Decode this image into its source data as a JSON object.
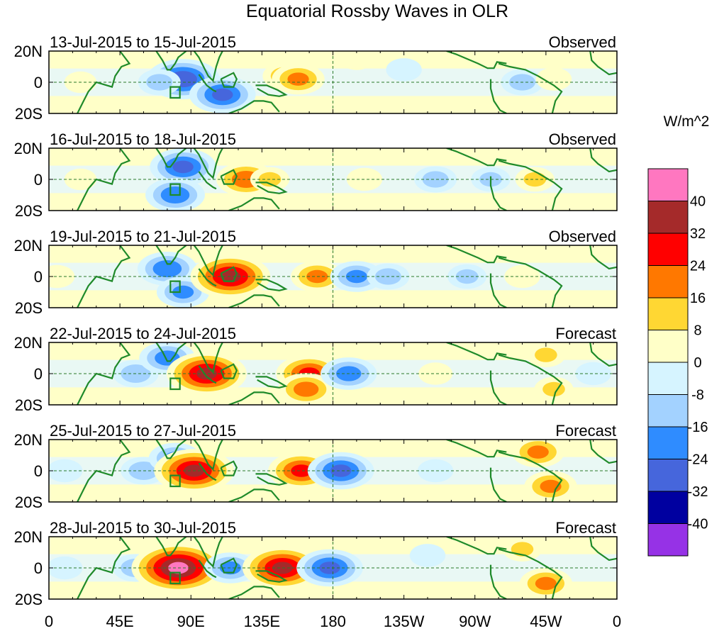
{
  "chart_data": {
    "type": "heatmap",
    "title": "Equatorial Rossby Waves in OLR",
    "units_label": "W/m^2",
    "x_ticks": [
      "0",
      "45E",
      "90E",
      "135E",
      "180",
      "135W",
      "90W",
      "45W",
      "0"
    ],
    "x_tick_lon": [
      0,
      45,
      90,
      135,
      180,
      225,
      270,
      315,
      360
    ],
    "y_ticks": [
      "20N",
      "0",
      "20S"
    ],
    "y_tick_lat": [
      20,
      0,
      -20
    ],
    "xlim": [
      0,
      360
    ],
    "ylim": [
      -20,
      20
    ],
    "reference_lines": {
      "equator_lat": 0,
      "dateline_lon": 180
    },
    "colorbar": {
      "levels": [
        "40",
        "32",
        "24",
        "16",
        "8",
        "0",
        "-8",
        "-16",
        "-24",
        "-32",
        "-40"
      ],
      "colors": [
        "#ff77c0",
        "#a52a2a",
        "#ff0000",
        "#ff7800",
        "#ffd733",
        "#ffffc8",
        "#d6f4ff",
        "#a3d2ff",
        "#2f8cff",
        "#4666dc",
        "#0000a0",
        "#9632e6"
      ]
    },
    "panels": [
      {
        "date_range": "13-Jul-2015 to 15-Jul-2015",
        "status": "Observed",
        "anomalies": [
          {
            "lon": 85,
            "lat": 2,
            "value": -28
          },
          {
            "lon": 110,
            "lat": -8,
            "value": -24
          },
          {
            "lon": 150,
            "lat": 4,
            "value": 12
          },
          {
            "lon": 158,
            "lat": 2,
            "value": 16
          },
          {
            "lon": 70,
            "lat": 0,
            "value": -10
          },
          {
            "lon": 225,
            "lat": 8,
            "value": -6
          },
          {
            "lon": 300,
            "lat": 0,
            "value": -10
          },
          {
            "lon": 320,
            "lat": 2,
            "value": 6
          },
          {
            "lon": 20,
            "lat": 0,
            "value": 4
          },
          {
            "lon": 195,
            "lat": 15,
            "value": 5
          }
        ]
      },
      {
        "date_range": "16-Jul-2015 to 18-Jul-2015",
        "status": "Observed",
        "anomalies": [
          {
            "lon": 85,
            "lat": 8,
            "value": -24
          },
          {
            "lon": 80,
            "lat": -10,
            "value": -20
          },
          {
            "lon": 125,
            "lat": 0,
            "value": 20
          },
          {
            "lon": 140,
            "lat": 0,
            "value": 8
          },
          {
            "lon": 200,
            "lat": 0,
            "value": 6
          },
          {
            "lon": 245,
            "lat": 0,
            "value": -10
          },
          {
            "lon": 280,
            "lat": 0,
            "value": -8
          },
          {
            "lon": 308,
            "lat": 0,
            "value": 8
          },
          {
            "lon": 20,
            "lat": 0,
            "value": 4
          }
        ]
      },
      {
        "date_range": "19-Jul-2015 to 21-Jul-2015",
        "status": "Observed",
        "anomalies": [
          {
            "lon": 75,
            "lat": 5,
            "value": -20
          },
          {
            "lon": 85,
            "lat": -10,
            "value": -16
          },
          {
            "lon": 115,
            "lat": 0,
            "value": 32
          },
          {
            "lon": 170,
            "lat": 0,
            "value": 16
          },
          {
            "lon": 195,
            "lat": 0,
            "value": -16
          },
          {
            "lon": 215,
            "lat": 0,
            "value": -10
          },
          {
            "lon": 265,
            "lat": 0,
            "value": -8
          },
          {
            "lon": 300,
            "lat": 0,
            "value": 6
          },
          {
            "lon": 5,
            "lat": 0,
            "value": 6
          }
        ]
      },
      {
        "date_range": "22-Jul-2015 to 24-Jul-2015",
        "status": "Forecast",
        "anomalies": [
          {
            "lon": 55,
            "lat": 0,
            "value": -12
          },
          {
            "lon": 75,
            "lat": 10,
            "value": -18
          },
          {
            "lon": 100,
            "lat": 0,
            "value": 32
          },
          {
            "lon": 165,
            "lat": 0,
            "value": 24
          },
          {
            "lon": 163,
            "lat": -10,
            "value": 18
          },
          {
            "lon": 190,
            "lat": 0,
            "value": -18
          },
          {
            "lon": 245,
            "lat": 0,
            "value": 5
          },
          {
            "lon": 315,
            "lat": 12,
            "value": 8
          },
          {
            "lon": 320,
            "lat": -10,
            "value": 8
          },
          {
            "lon": 345,
            "lat": 0,
            "value": -6
          }
        ]
      },
      {
        "date_range": "25-Jul-2015 to 27-Jul-2015",
        "status": "Forecast",
        "anomalies": [
          {
            "lon": 60,
            "lat": 0,
            "value": -12
          },
          {
            "lon": 80,
            "lat": 8,
            "value": -16
          },
          {
            "lon": 92,
            "lat": 0,
            "value": 32
          },
          {
            "lon": 160,
            "lat": 0,
            "value": 24
          },
          {
            "lon": 185,
            "lat": 0,
            "value": -24
          },
          {
            "lon": 245,
            "lat": 0,
            "value": -6
          },
          {
            "lon": 310,
            "lat": 12,
            "value": 16
          },
          {
            "lon": 318,
            "lat": -10,
            "value": 16
          },
          {
            "lon": 10,
            "lat": 0,
            "value": -6
          }
        ]
      },
      {
        "date_range": "28-Jul-2015 to 30-Jul-2015",
        "status": "Forecast",
        "anomalies": [
          {
            "lon": 55,
            "lat": 0,
            "value": -12
          },
          {
            "lon": 82,
            "lat": 0,
            "value": 40
          },
          {
            "lon": 115,
            "lat": 0,
            "value": -16
          },
          {
            "lon": 148,
            "lat": 0,
            "value": 32
          },
          {
            "lon": 178,
            "lat": 0,
            "value": -24
          },
          {
            "lon": 240,
            "lat": 8,
            "value": -6
          },
          {
            "lon": 300,
            "lat": 12,
            "value": 8
          },
          {
            "lon": 315,
            "lat": -10,
            "value": 16
          },
          {
            "lon": 10,
            "lat": 0,
            "value": -6
          }
        ]
      }
    ]
  }
}
